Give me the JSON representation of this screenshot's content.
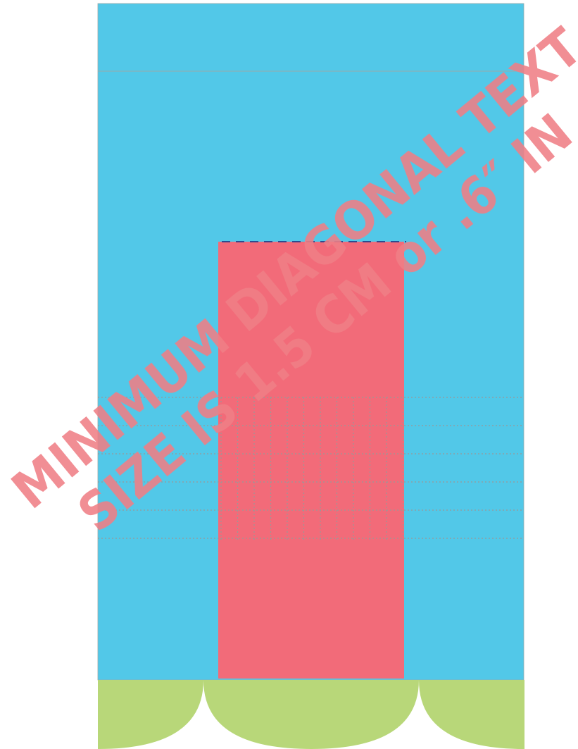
{
  "watermark": {
    "lines": [
      "MINIMUM DIAGONAL TEXT",
      "SIZE IS 1.5 CM or .6″ IN"
    ]
  }
}
